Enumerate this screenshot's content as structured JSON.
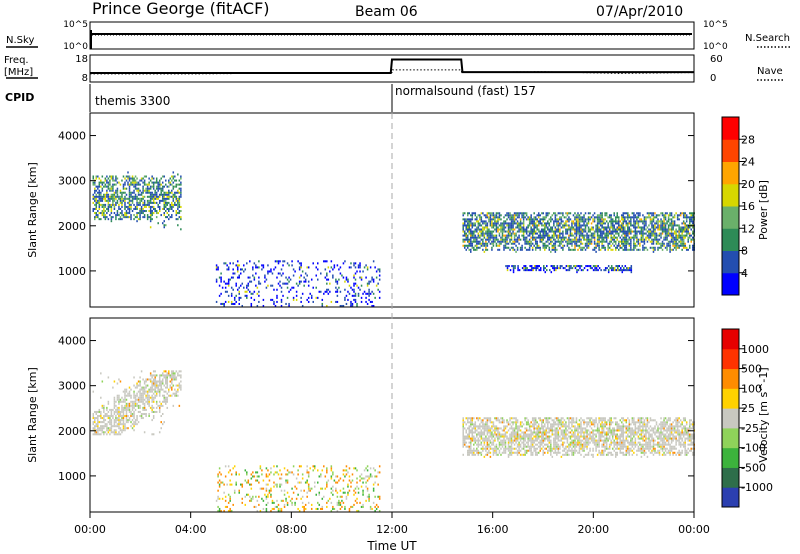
{
  "header": {
    "station": "Prince George (fitACF)",
    "beam": "Beam 06",
    "date": "07/Apr/2010"
  },
  "sky_panel": {
    "left_label": "N.Sky",
    "right_label": "N.Search",
    "left_ticks": [
      "10^5",
      "10^0"
    ],
    "right_ticks": [
      "10^5",
      "10^0"
    ]
  },
  "freq_panel": {
    "left_label_1": "Freq.",
    "left_label_2": "[MHz]",
    "right_label": "Nave",
    "left_ticks": [
      "18",
      "8"
    ],
    "right_ticks": [
      "60",
      "0"
    ],
    "freq_trace": [
      [
        0,
        11
      ],
      [
        4,
        11
      ],
      [
        8,
        11.3
      ],
      [
        12,
        11.5
      ],
      [
        12.02,
        12.5
      ],
      [
        14.75,
        12.5
      ],
      [
        14.77,
        11.6
      ],
      [
        18,
        11.8
      ],
      [
        21,
        11.2
      ],
      [
        24,
        11.5
      ]
    ],
    "nave_trace": [
      [
        0,
        20
      ],
      [
        11.95,
        20
      ],
      [
        12,
        50
      ],
      [
        14.75,
        50
      ],
      [
        14.8,
        22
      ],
      [
        24,
        22
      ]
    ]
  },
  "cpid": {
    "label": "CPID",
    "segments": [
      {
        "name": "themis 3300",
        "start": 0,
        "end": 12
      },
      {
        "name": "normalsound (fast) 157",
        "start": 12,
        "end": 24
      }
    ]
  },
  "x_axis": {
    "title": "Time UT",
    "ticks": [
      "00:00",
      "04:00",
      "08:00",
      "12:00",
      "16:00",
      "20:00",
      "00:00"
    ]
  },
  "chart_data": [
    {
      "type": "heatmap",
      "quantity": "Power",
      "unit": "dB",
      "xlim": [
        0,
        24
      ],
      "ylim": [
        200,
        4500
      ],
      "ylabel": "Slant Range [km]",
      "yticks": [
        "4000",
        "3000",
        "2000",
        "1000"
      ],
      "colorbar": {
        "label": "Power [dB]",
        "ticks": [
          "28",
          "24",
          "20",
          "16",
          "12",
          "8",
          "4"
        ],
        "colors": [
          "#0000ff",
          "#234eb0",
          "#2e8b57",
          "#6ab06a",
          "#d7d700",
          "#ffa500",
          "#ff4500",
          "#ff0000"
        ]
      },
      "regions": [
        {
          "t0": 0.1,
          "t1": 3.6,
          "r0": 1900,
          "r1": 3300,
          "level": "mixed"
        },
        {
          "t0": 5.0,
          "t1": 11.5,
          "r0": 200,
          "r1": 1200,
          "level": "low"
        },
        {
          "t0": 14.8,
          "t1": 24,
          "r0": 1400,
          "r1": 2300,
          "level": "high"
        },
        {
          "t0": 16.5,
          "t1": 21.5,
          "r0": 950,
          "r1": 1100,
          "level": "low"
        }
      ]
    },
    {
      "type": "heatmap",
      "quantity": "Velocity",
      "unit": "m s^-1",
      "xlim": [
        0,
        24
      ],
      "ylim": [
        200,
        4500
      ],
      "ylabel": "Slant Range [km]",
      "yticks": [
        "4000",
        "3000",
        "2000",
        "1000"
      ],
      "colorbar": {
        "label": "Velocity [m s^-1]",
        "ticks": [
          "1000",
          "500",
          "100",
          "25",
          "-25",
          "-100",
          "-500",
          "-1000"
        ],
        "colors": [
          "#2b3fb0",
          "#2e6e4a",
          "#3cb33c",
          "#8fd35a",
          "#c8c8c0",
          "#ffd200",
          "#ff8c00",
          "#ff3300",
          "#e60000"
        ]
      },
      "regions": [
        {
          "t0": 0.1,
          "t1": 3.6,
          "r0": 1900,
          "r1": 3300,
          "level": "near-zero"
        },
        {
          "t0": 5.0,
          "t1": 11.5,
          "r0": 200,
          "r1": 1200,
          "level": "mixed-low"
        },
        {
          "t0": 14.8,
          "t1": 24,
          "r0": 1400,
          "r1": 2300,
          "level": "near-zero"
        }
      ]
    }
  ]
}
